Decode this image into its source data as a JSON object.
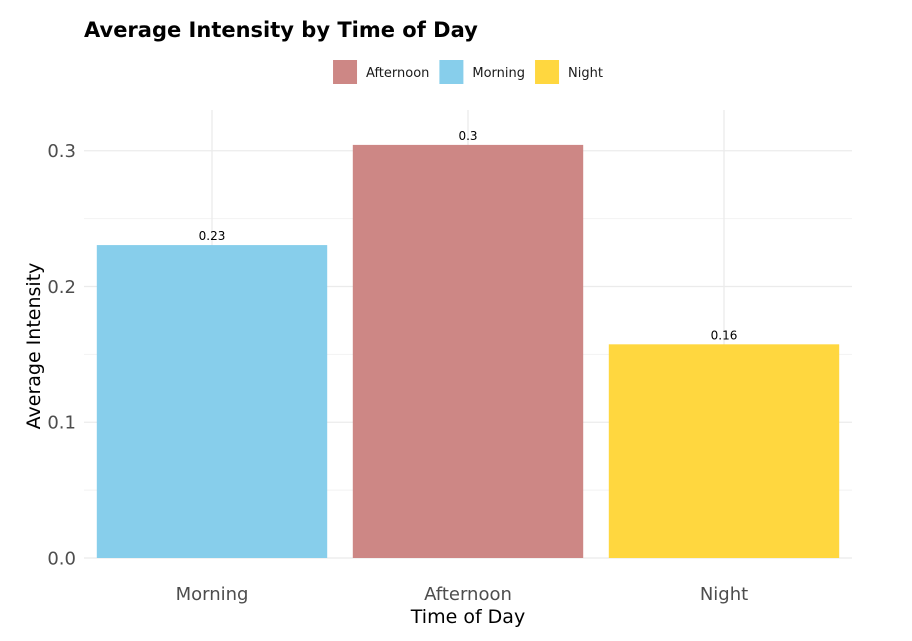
{
  "chart_data": {
    "type": "bar",
    "title": "Average Intensity by Time of Day",
    "xlabel": "Time of Day",
    "ylabel": "Average Intensity",
    "categories": [
      "Morning",
      "Afternoon",
      "Night"
    ],
    "values": [
      0.2305,
      0.3043,
      0.1574
    ],
    "data_labels": [
      "0.23",
      "0.3",
      "0.16"
    ],
    "colors": [
      "#87CEEB",
      "#CD8785",
      "#FFD73F"
    ],
    "ylim": [
      0,
      0.33
    ],
    "y_ticks": [
      0.0,
      0.1,
      0.2,
      0.3
    ],
    "y_tick_labels": [
      "0.0",
      "0.1",
      "0.2",
      "0.3"
    ],
    "grid": true,
    "legend": {
      "position": "top",
      "entries": [
        {
          "label": "Afternoon",
          "color": "#CD8785"
        },
        {
          "label": "Morning",
          "color": "#87CEEB"
        },
        {
          "label": "Night",
          "color": "#FFD73F"
        }
      ]
    }
  }
}
